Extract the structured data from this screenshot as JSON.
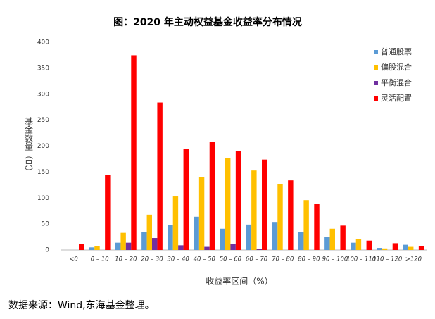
{
  "chart_data": {
    "type": "bar",
    "title": "图：2020 年主动权益基金收益率分布情况",
    "x_label": "收益率区间（%）",
    "y_label": "基金数量（只）",
    "source": "数据来源：Wind,东海基金整理。",
    "categories": [
      "<0",
      "0 – 10",
      "10 – 20",
      "20 – 30",
      "30 – 40",
      "40 – 50",
      "50 – 60",
      "60 – 70",
      "70 – 80",
      "80 – 90",
      "90 – 100",
      "100 – 110",
      "110 – 120",
      ">120"
    ],
    "series": [
      {
        "name": "普通股票",
        "color": "#5b9bd5",
        "values": [
          0,
          5,
          14,
          34,
          48,
          64,
          41,
          49,
          54,
          34,
          25,
          14,
          4,
          10
        ]
      },
      {
        "name": "偏股混合",
        "color": "#ffc000",
        "values": [
          0,
          7,
          33,
          68,
          103,
          141,
          177,
          153,
          127,
          96,
          41,
          21,
          3,
          6
        ]
      },
      {
        "name": "平衡混合",
        "color": "#7030a0",
        "values": [
          0,
          0,
          14,
          23,
          9,
          6,
          11,
          2,
          0,
          0,
          0,
          0,
          0,
          0
        ]
      },
      {
        "name": "灵活配置",
        "color": "#ff0000",
        "values": [
          11,
          144,
          375,
          284,
          194,
          208,
          190,
          174,
          134,
          89,
          47,
          18,
          13,
          7
        ]
      }
    ],
    "ylim": [
      0,
      400
    ],
    "yticks": [
      0,
      50,
      100,
      150,
      200,
      250,
      300,
      350,
      400
    ],
    "grid": false,
    "legend": "top-right"
  }
}
